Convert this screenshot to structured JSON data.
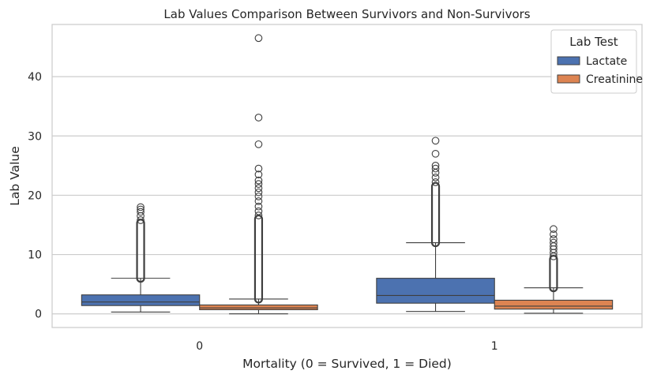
{
  "chart_data": {
    "type": "box",
    "title": "Lab Values Comparison Between Survivors and Non-Survivors",
    "xlabel": "Mortality (0 = Survived, 1 = Died)",
    "ylabel": "Lab Value",
    "categories": [
      "0",
      "1"
    ],
    "ylim": [
      -2.3,
      48.8
    ],
    "yticks": [
      0,
      10,
      20,
      30,
      40
    ],
    "grid": true,
    "legend": {
      "title": "Lab Test",
      "placement": "top-right"
    },
    "series": [
      {
        "name": "Lactate",
        "color": "#4c72b0",
        "boxes": [
          {
            "category": "0",
            "min": 0.3,
            "q1": 1.4,
            "median": 2.0,
            "q3": 3.2,
            "max": 6.0,
            "outliers_dense": [
              6.0,
              15.3
            ],
            "outliers": [
              15.8,
              16.5,
              17.2,
              17.6,
              18.0
            ]
          },
          {
            "category": "1",
            "min": 0.4,
            "q1": 1.8,
            "median": 3.1,
            "q3": 6.0,
            "max": 12.0,
            "outliers_dense": [
              12.0,
              21.5
            ],
            "outliers": [
              22.2,
              23.0,
              23.8,
              24.5,
              25.0,
              27.0,
              29.2
            ]
          }
        ]
      },
      {
        "name": "Creatinine",
        "color": "#dd8452",
        "boxes": [
          {
            "category": "0",
            "min": 0.0,
            "q1": 0.7,
            "median": 1.0,
            "q3": 1.5,
            "max": 2.5,
            "outliers_dense": [
              2.5,
              16.0
            ],
            "outliers": [
              16.6,
              17.3,
              18.1,
              19.0,
              19.8,
              20.5,
              21.2,
              21.9,
              22.5,
              23.5,
              24.5,
              28.6,
              33.1,
              46.5
            ]
          },
          {
            "category": "1",
            "min": 0.1,
            "q1": 0.8,
            "median": 1.3,
            "q3": 2.3,
            "max": 4.4,
            "outliers_dense": [
              4.4,
              9.2
            ],
            "outliers": [
              9.7,
              10.3,
              10.9,
              11.4,
              12.0,
              12.6,
              13.4,
              14.3
            ]
          }
        ]
      }
    ]
  }
}
